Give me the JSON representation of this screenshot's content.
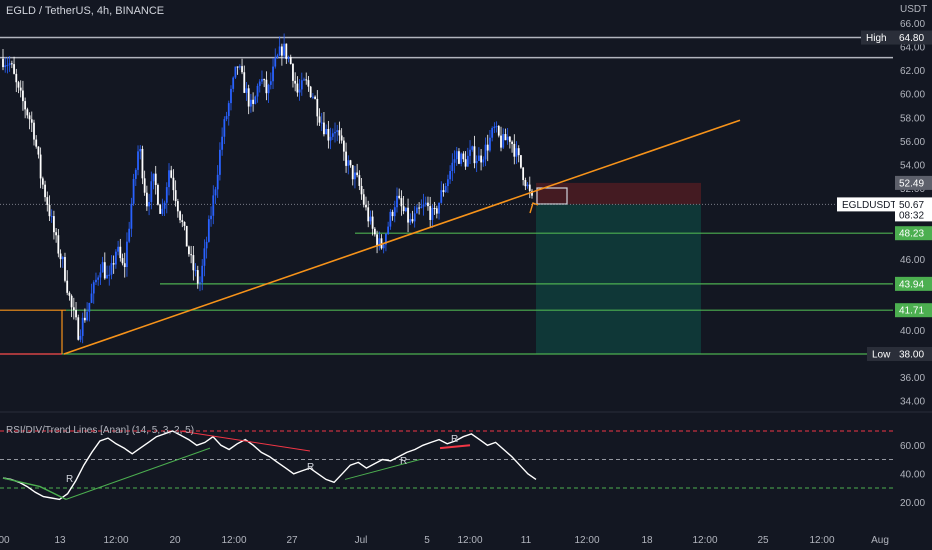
{
  "header": {
    "title": "EGLD / TetherUS, 4h, BINANCE"
  },
  "axis": {
    "unit_label": "USDT"
  },
  "indicator": {
    "title": "RSI/DIV/Trend Lines [Anan] (14, 5, 3, 2, 5)",
    "levels": [
      70,
      50,
      30
    ],
    "ticks": [
      "60.00",
      "40.00",
      "20.00"
    ],
    "divergence_labels": [
      "R",
      "R",
      "R",
      "R"
    ]
  },
  "colors": {
    "background": "#131722",
    "candle_up": "#2962ff",
    "candle_down": "#ffffff",
    "trendline": "#f7931a",
    "support": "#4caf50",
    "resistance": "#b2b5be",
    "low_line": "#f23645",
    "stop_zone": "#4a1c22",
    "target_zone": "#0f3b3a",
    "rsi_line": "#ffffff"
  },
  "chart_data": {
    "type": "candlestick",
    "symbol": "EGLDUSDT",
    "timeframe": "4h",
    "y_ticks": [
      "66.00",
      "64.00",
      "62.00",
      "60.00",
      "58.00",
      "56.00",
      "54.00",
      "52.00",
      "50.00",
      "48.00",
      "46.00",
      "44.00",
      "42.00",
      "40.00",
      "38.00",
      "36.00",
      "34.00"
    ],
    "x_ticks": [
      "00",
      "13",
      "12:00",
      "20",
      "12:00",
      "27",
      "Jul",
      "5",
      "12:00",
      "11",
      "12:00",
      "18",
      "12:00",
      "25",
      "12:00",
      "Aug"
    ],
    "ylim": [
      32.5,
      66.5
    ],
    "close_path": [
      63,
      62.5,
      60.2,
      58.8,
      57.2,
      53.0,
      50.5,
      47.5,
      45.5,
      42.0,
      39.8,
      41.5,
      43.5,
      45.8,
      44.0,
      47.0,
      45.0,
      50.8,
      55.8,
      50.8,
      52.8,
      49.8,
      53.8,
      51.0,
      48.2,
      45.5,
      43.8,
      47.8,
      51.8,
      56.5,
      59.5,
      62.5,
      60.5,
      58.5,
      61.5,
      60.0,
      62.5,
      64.0,
      62.8,
      60.0,
      61.0,
      60.0,
      58.0,
      56.5,
      57.2,
      55.0,
      53.5,
      52.5,
      50.2,
      48.3,
      47.0,
      49.0,
      51.2,
      50.0,
      49.0,
      50.0,
      50.6,
      49.5,
      51.5,
      53.2,
      55.0,
      54.2,
      55.0,
      54.5,
      55.5,
      57.0,
      55.8,
      56.5,
      54.8,
      53.0,
      50.9
    ],
    "price_tags": [
      {
        "label": "High",
        "value": "64.80",
        "kind": "high"
      },
      {
        "label": "",
        "value": "52.49",
        "kind": "entry"
      },
      {
        "label": "EGLDUSDT",
        "value": "50.67",
        "sub": "08:32",
        "kind": "last"
      },
      {
        "label": "",
        "value": "48.23",
        "kind": "support"
      },
      {
        "label": "",
        "value": "43.94",
        "kind": "support"
      },
      {
        "label": "",
        "value": "41.71",
        "kind": "support"
      },
      {
        "label": "Low",
        "value": "38.00",
        "kind": "low"
      }
    ],
    "horizontal_levels": [
      64.8,
      63.1,
      48.23,
      43.94,
      41.71,
      38.0
    ],
    "trendline": {
      "from": 38.0,
      "to": 57.8
    },
    "position": {
      "entry": 50.67,
      "stop": 52.49,
      "target": 38.0
    }
  }
}
